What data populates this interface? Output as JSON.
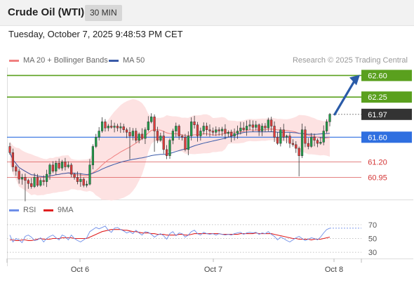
{
  "header": {
    "title": "Crude Oil (WTI)",
    "timeframe": "30 MIN",
    "timestamp": "Tuesday, October 7, 2025 9:48:53 PM CET"
  },
  "legend": {
    "ma20_label": "MA 20 + Bollinger Bands",
    "ma50_label": "MA 50",
    "rsi_label": "RSI",
    "rsi_ma_label": "9MA"
  },
  "copyright": "Research © 2025 Trading Central",
  "colors": {
    "up": "#20a04a",
    "down": "#e23b3b",
    "band_fill": "#fde2e2",
    "ma20": "#f08080",
    "ma50": "#3a5aa8",
    "resistance": "#5aa01e",
    "support_blue": "#2f6fe0",
    "support_red": "#d43535",
    "current": "#333333",
    "arrow": "#2a5ba8",
    "rsi": "#6e8ee8",
    "rsi_ma": "#e02020"
  },
  "chart_data": [
    {
      "type": "candlestick",
      "x_labels": [
        "Oct 6",
        "Oct 7",
        "Oct 8"
      ],
      "ylim": [
        60.75,
        62.73
      ],
      "levels": [
        {
          "value": 62.6,
          "label": "62.60",
          "kind": "resistance"
        },
        {
          "value": 62.25,
          "label": "62.25",
          "kind": "resistance"
        },
        {
          "value": 61.97,
          "label": "61.97",
          "kind": "current"
        },
        {
          "value": 61.6,
          "label": "61.60",
          "kind": "support_blue"
        },
        {
          "value": 61.2,
          "label": "61.20",
          "kind": "support_red"
        },
        {
          "value": 60.95,
          "label": "60.95",
          "kind": "support_red"
        }
      ],
      "closes": [
        61.35,
        61.12,
        61.05,
        60.92,
        60.95,
        60.9,
        60.85,
        60.8,
        60.95,
        60.82,
        60.9,
        60.88,
        61.0,
        61.15,
        61.05,
        61.18,
        61.1,
        61.2,
        61.12,
        61.15,
        61.0,
        60.95,
        60.88,
        60.92,
        60.82,
        60.84,
        61.15,
        61.45,
        61.6,
        61.7,
        61.85,
        61.75,
        61.78,
        61.76,
        61.78,
        61.75,
        61.77,
        61.72,
        61.68,
        61.62,
        61.7,
        61.55,
        61.65,
        61.58,
        61.72,
        61.85,
        61.93,
        61.7,
        61.55,
        61.62,
        61.4,
        61.3,
        61.55,
        61.7,
        61.78,
        61.62,
        61.6,
        61.4,
        61.62,
        61.85,
        61.8,
        61.62,
        61.7,
        61.78,
        61.72,
        61.7,
        61.68,
        61.72,
        61.7,
        61.73,
        61.66,
        61.68,
        61.62,
        61.66,
        61.7,
        61.75,
        61.72,
        61.78,
        61.8,
        61.76,
        61.8,
        61.7,
        61.78,
        61.75,
        61.88,
        61.78,
        61.6,
        61.5,
        61.72,
        61.6,
        61.62,
        61.5,
        61.48,
        61.42,
        61.3,
        61.72,
        61.5,
        61.45,
        61.6,
        61.55,
        61.5,
        61.52,
        61.7,
        61.85,
        61.97
      ]
    },
    {
      "type": "line",
      "title": "RSI",
      "ylim": [
        23,
        78
      ],
      "y_ticks": [
        70,
        50,
        30
      ],
      "series": [
        {
          "name": "RSI",
          "values": [
            55,
            45,
            50,
            48,
            44,
            53,
            55,
            52,
            47,
            48,
            51,
            45,
            50,
            53,
            55,
            51,
            48,
            55,
            53,
            48,
            55,
            50,
            47,
            45,
            48,
            51,
            60,
            63,
            66,
            64,
            66,
            68,
            62,
            59,
            65,
            66,
            63,
            61,
            58,
            60,
            57,
            62,
            58,
            55,
            60,
            59,
            56,
            52,
            55,
            57,
            54,
            49,
            57,
            60,
            54,
            58,
            57,
            52,
            55,
            60,
            62,
            57,
            55,
            59,
            57,
            56,
            57,
            55,
            57,
            56,
            55,
            56,
            55,
            57,
            58,
            59,
            56,
            58,
            59,
            58,
            59,
            56,
            58,
            57,
            60,
            56,
            53,
            48,
            52,
            50,
            47,
            45,
            48,
            51,
            53,
            50,
            47,
            49,
            51,
            50,
            48,
            52,
            58,
            63,
            65
          ]
        },
        {
          "name": "9MA",
          "values": [
            48,
            48,
            47,
            47,
            48,
            48,
            47,
            47,
            48,
            49,
            50,
            49,
            49,
            49,
            50,
            50,
            50,
            51,
            51,
            51,
            51,
            50,
            50,
            50,
            50,
            50,
            52,
            54,
            56,
            58,
            60,
            61,
            62,
            63,
            63,
            63,
            63,
            62,
            62,
            61,
            60,
            60,
            59,
            58,
            58,
            58,
            57,
            57,
            56,
            56,
            56,
            55,
            55,
            55,
            55,
            56,
            56,
            55,
            55,
            56,
            57,
            57,
            57,
            57,
            57,
            57,
            57,
            57,
            57,
            56,
            56,
            56,
            56,
            56,
            56,
            57,
            57,
            57,
            57,
            57,
            58,
            57,
            57,
            57,
            57,
            57,
            56,
            55,
            54,
            53,
            52,
            51,
            50,
            50,
            49,
            49,
            49,
            49,
            48,
            49,
            49,
            49,
            50,
            51,
            52
          ]
        }
      ]
    }
  ]
}
